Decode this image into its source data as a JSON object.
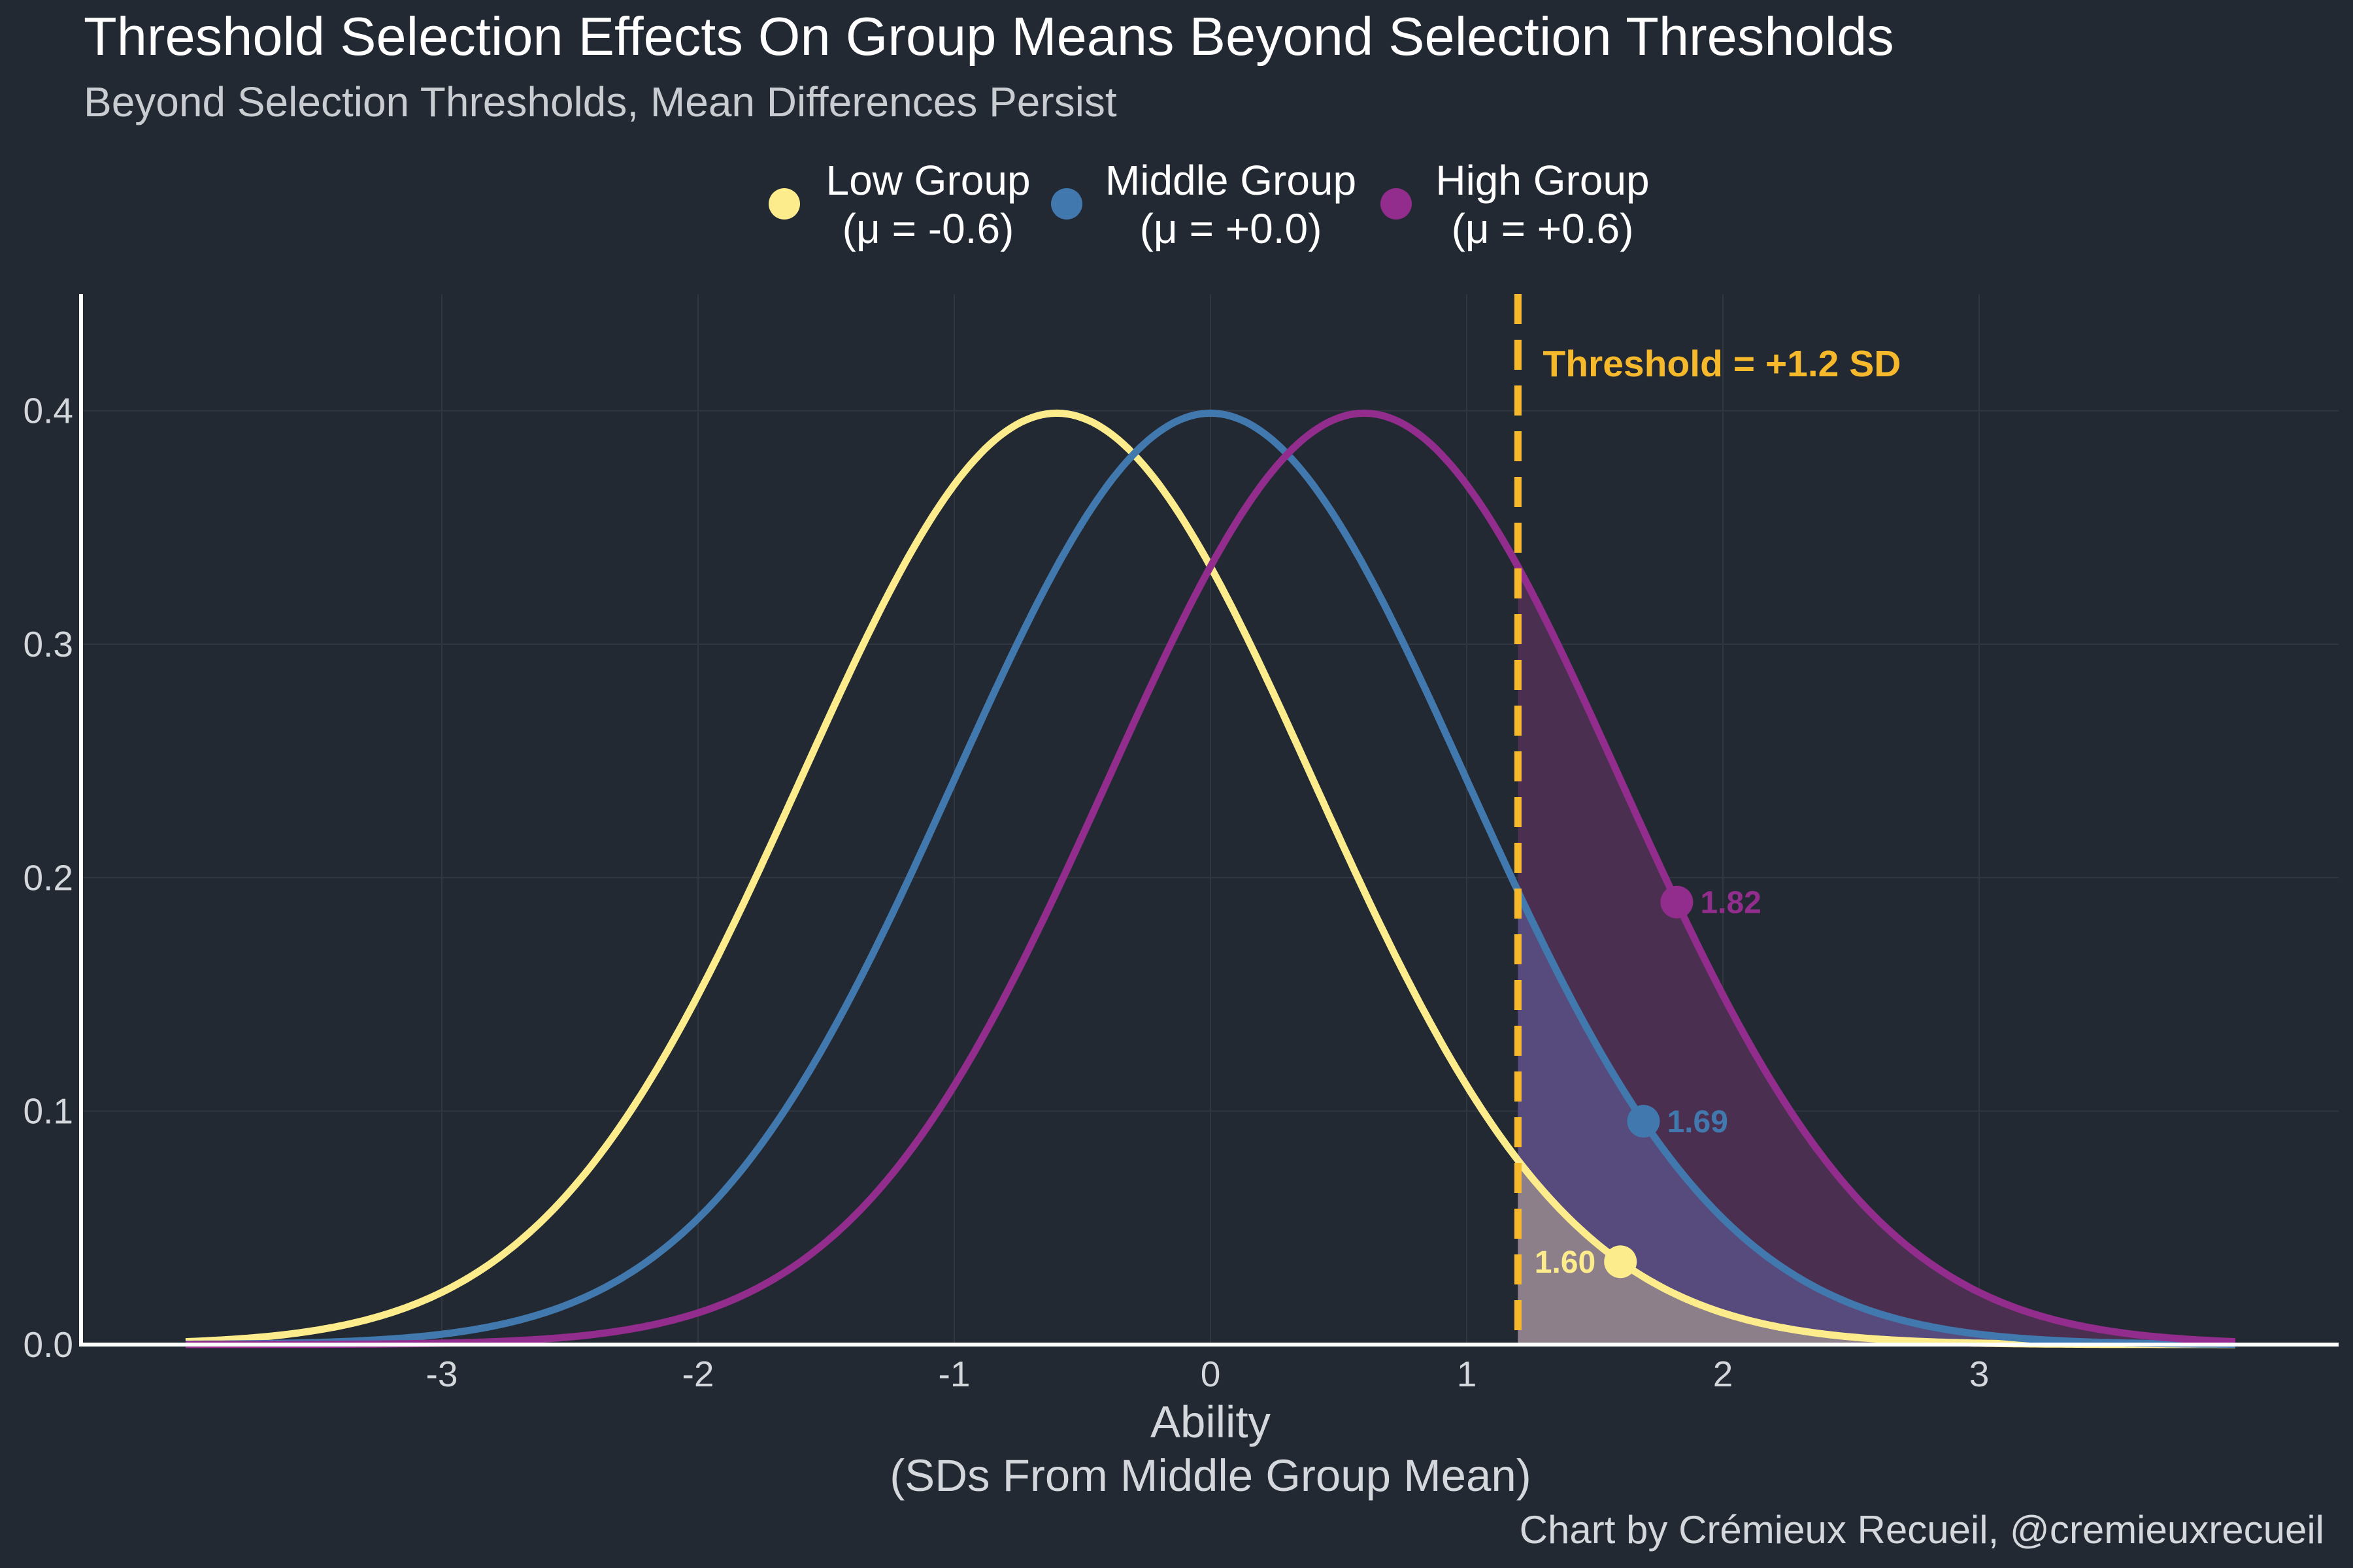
{
  "chart_data": {
    "type": "line",
    "title": "Threshold Selection Effects On Group Means Beyond Selection Thresholds",
    "subtitle": "Beyond Selection Thresholds, Mean Differences Persist",
    "xlabel_line1": "Ability",
    "xlabel_line2": "(SDs From Middle Group Mean)",
    "caption": "Chart by Crémieux Recueil, @cremieuxrecueil",
    "xlim": [
      -4.4,
      4.4
    ],
    "ylim": [
      0,
      0.45
    ],
    "x_ticks": [
      -3,
      -2,
      -1,
      0,
      1,
      2,
      3
    ],
    "x_tick_labels": [
      "-3",
      "-2",
      "-1",
      "0",
      "1",
      "2",
      "3"
    ],
    "y_ticks": [
      0.0,
      0.1,
      0.2,
      0.3,
      0.4
    ],
    "y_tick_labels": [
      "0.0",
      "0.1",
      "0.2",
      "0.3",
      "0.4"
    ],
    "x_range_plotted": [
      -4,
      4
    ],
    "grid": true,
    "legend_position": "top",
    "threshold": {
      "value": 1.2,
      "label": "Threshold = +1.2 SD",
      "color": "#f6b92b"
    },
    "series": [
      {
        "name": "Low Group",
        "legend_line1": "Low Group",
        "legend_line2": "(μ = -0.6)",
        "mean": -0.6,
        "sd": 1,
        "color": "#fdec8c",
        "fill": "#8c7f8a",
        "mean_above_threshold": 1.6,
        "mean_label": "1.60"
      },
      {
        "name": "Middle Group",
        "legend_line1": "Middle Group",
        "legend_line2": "(μ = +0.0)",
        "mean": 0.0,
        "sd": 1,
        "color": "#4178ad",
        "fill": "#574b7d",
        "mean_above_threshold": 1.69,
        "mean_label": "1.69"
      },
      {
        "name": "High Group",
        "legend_line1": "High Group",
        "legend_line2": "(μ = +0.6)",
        "mean": 0.6,
        "sd": 1,
        "color": "#932d8d",
        "fill": "#4b2f50",
        "mean_above_threshold": 1.82,
        "mean_label": "1.82"
      }
    ],
    "colors": {
      "background": "#232932",
      "grid": "#313741",
      "axis": "#ffffff",
      "tick_text": "#d4d7db"
    }
  }
}
